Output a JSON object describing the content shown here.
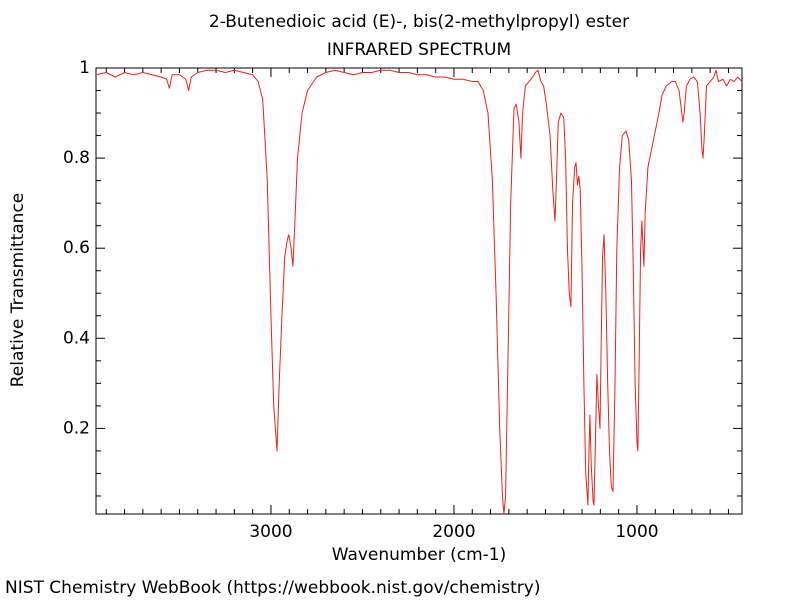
{
  "chart_data": {
    "type": "line",
    "title": "2-Butenedioic acid (E)-, bis(2-methylpropyl) ester",
    "subtitle": "INFRARED SPECTRUM",
    "x_label": "Wavenumber (cm-1)",
    "y_label": "Relative Transmittance",
    "source": "NIST Chemistry WebBook (https://webbook.nist.gov/chemistry)",
    "color": "#e8231c",
    "xlim": [
      3956,
      426
    ],
    "ylim": [
      0.01,
      1
    ],
    "xticks": [
      3000,
      2000,
      1000
    ],
    "yticks": [
      0.2,
      0.4,
      0.6,
      0.8,
      1
    ],
    "xminorticks": [
      3900,
      3800,
      3700,
      3600,
      3500,
      3400,
      3300,
      3200,
      3100,
      2900,
      2800,
      2700,
      2600,
      2500,
      2400,
      2300,
      2200,
      2100,
      1900,
      1800,
      1700,
      1600,
      1500,
      1400,
      1300,
      1200,
      1100,
      900,
      800,
      700,
      600,
      500
    ],
    "yminorticks": [
      0.05,
      0.1,
      0.15,
      0.25,
      0.3,
      0.35,
      0.45,
      0.5,
      0.55,
      0.65,
      0.7,
      0.75,
      0.85,
      0.9,
      0.95
    ],
    "x": [
      3956,
      3900,
      3850,
      3800,
      3750,
      3700,
      3650,
      3600,
      3570,
      3555,
      3540,
      3500,
      3465,
      3450,
      3435,
      3400,
      3350,
      3300,
      3250,
      3200,
      3150,
      3100,
      3070,
      3045,
      3020,
      3000,
      2985,
      2967,
      2955,
      2940,
      2925,
      2910,
      2902,
      2890,
      2880,
      2870,
      2855,
      2830,
      2800,
      2750,
      2700,
      2650,
      2600,
      2550,
      2500,
      2450,
      2400,
      2350,
      2300,
      2250,
      2200,
      2150,
      2100,
      2050,
      2000,
      1950,
      1900,
      1869,
      1840,
      1814,
      1790,
      1770,
      1750,
      1735,
      1727,
      1718,
      1705,
      1690,
      1672,
      1660,
      1645,
      1634,
      1625,
      1610,
      1590,
      1570,
      1555,
      1541,
      1525,
      1510,
      1495,
      1475,
      1460,
      1448,
      1440,
      1430,
      1415,
      1400,
      1390,
      1380,
      1370,
      1361,
      1352,
      1340,
      1333,
      1325,
      1318,
      1310,
      1300,
      1290,
      1280,
      1268,
      1262,
      1257,
      1250,
      1240,
      1235,
      1228,
      1219,
      1210,
      1202,
      1195,
      1188,
      1180,
      1170,
      1160,
      1150,
      1140,
      1131,
      1120,
      1110,
      1095,
      1080,
      1060,
      1045,
      1030,
      1020,
      1010,
      1000,
      995,
      988,
      980,
      973,
      967,
      962,
      955,
      940,
      920,
      900,
      880,
      863,
      840,
      810,
      790,
      770,
      755,
      749,
      742,
      730,
      710,
      690,
      670,
      655,
      645,
      639,
      632,
      620,
      600,
      580,
      568,
      555,
      530,
      510,
      490,
      470,
      450,
      426
    ],
    "values": [
      0.985,
      0.99,
      0.98,
      0.99,
      0.985,
      0.99,
      0.985,
      0.98,
      0.975,
      0.955,
      0.985,
      0.985,
      0.975,
      0.95,
      0.98,
      0.99,
      0.995,
      0.995,
      0.99,
      0.995,
      0.99,
      0.985,
      0.97,
      0.93,
      0.75,
      0.45,
      0.25,
      0.15,
      0.3,
      0.45,
      0.58,
      0.62,
      0.63,
      0.6,
      0.56,
      0.65,
      0.8,
      0.9,
      0.95,
      0.98,
      0.99,
      0.995,
      0.99,
      0.985,
      0.99,
      0.99,
      0.995,
      0.995,
      0.99,
      0.99,
      0.985,
      0.985,
      0.98,
      0.98,
      0.975,
      0.975,
      0.97,
      0.97,
      0.95,
      0.9,
      0.75,
      0.5,
      0.2,
      0.05,
      0.01,
      0.05,
      0.35,
      0.7,
      0.91,
      0.92,
      0.88,
      0.8,
      0.9,
      0.96,
      0.97,
      0.98,
      0.99,
      0.995,
      0.97,
      0.96,
      0.92,
      0.85,
      0.73,
      0.66,
      0.75,
      0.88,
      0.9,
      0.89,
      0.8,
      0.6,
      0.5,
      0.47,
      0.7,
      0.78,
      0.79,
      0.74,
      0.76,
      0.73,
      0.55,
      0.3,
      0.1,
      0.03,
      0.15,
      0.23,
      0.12,
      0.04,
      0.03,
      0.15,
      0.32,
      0.25,
      0.2,
      0.4,
      0.58,
      0.63,
      0.5,
      0.3,
      0.15,
      0.07,
      0.06,
      0.3,
      0.6,
      0.78,
      0.85,
      0.86,
      0.84,
      0.75,
      0.55,
      0.3,
      0.17,
      0.15,
      0.35,
      0.6,
      0.66,
      0.6,
      0.56,
      0.68,
      0.78,
      0.82,
      0.86,
      0.9,
      0.94,
      0.96,
      0.97,
      0.97,
      0.95,
      0.9,
      0.88,
      0.9,
      0.96,
      0.975,
      0.98,
      0.97,
      0.9,
      0.82,
      0.8,
      0.85,
      0.96,
      0.97,
      0.98,
      0.995,
      0.97,
      0.975,
      0.96,
      0.975,
      0.97,
      0.98,
      0.97
    ]
  }
}
